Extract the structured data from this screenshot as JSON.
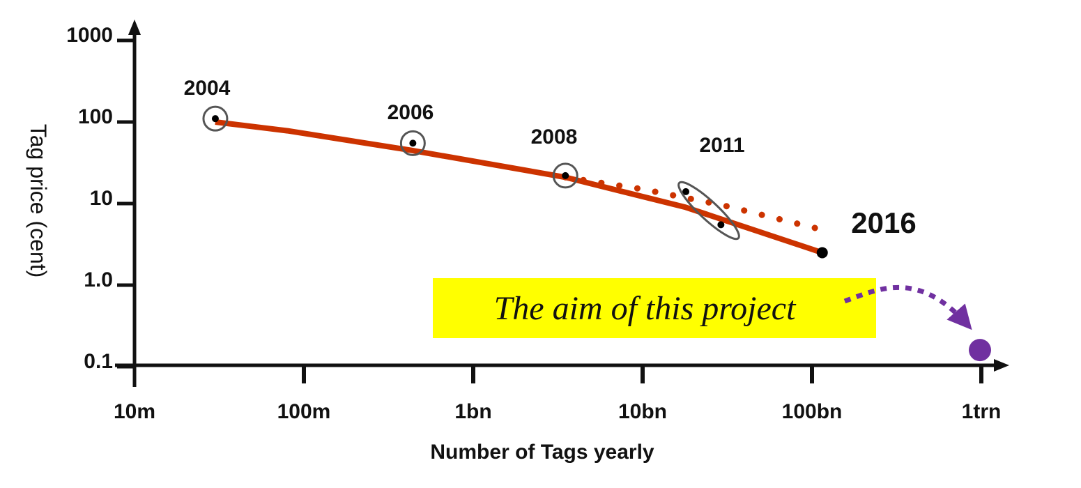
{
  "chart_data": {
    "type": "line",
    "title": "",
    "xlabel": "Number of Tags yearly",
    "ylabel": "Tag price (cent)",
    "x_scale": "log",
    "y_scale": "log",
    "xlim": [
      10000000,
      1000000000000
    ],
    "ylim": [
      0.1,
      1000
    ],
    "x_ticks": [
      {
        "value": 10000000,
        "label": "10m"
      },
      {
        "value": 100000000,
        "label": "100m"
      },
      {
        "value": 1000000000,
        "label": "1bn"
      },
      {
        "value": 10000000000,
        "label": "10bn"
      },
      {
        "value": 100000000000,
        "label": "100bn"
      },
      {
        "value": 1000000000000,
        "label": "1trn"
      }
    ],
    "y_ticks": [
      {
        "value": 1000,
        "label": "1000"
      },
      {
        "value": 100,
        "label": "100"
      },
      {
        "value": 10,
        "label": "10"
      },
      {
        "value": 1,
        "label": "1.0"
      },
      {
        "value": 0.1,
        "label": "0.1"
      }
    ],
    "grid": false,
    "legend": "none",
    "series": [
      {
        "style": "solid",
        "color": "#cc3300",
        "x": [
          30000000,
          80000000,
          430000000,
          3500000000,
          18000000000,
          115000000000
        ],
        "y": [
          100,
          78,
          45,
          21,
          9,
          2.5
        ]
      },
      {
        "style": "dotted",
        "color": "#cc3300",
        "x": [
          3500000000,
          10000000000,
          30000000000,
          105000000000
        ],
        "y": [
          21,
          15,
          9.5,
          5
        ]
      }
    ],
    "points": [
      {
        "label": "2004",
        "x": 30000000,
        "y": 110,
        "circled": true
      },
      {
        "label": "2006",
        "x": 440000000,
        "y": 55,
        "circled": true
      },
      {
        "label": "2008",
        "x": 3500000000,
        "y": 22,
        "circled": true
      },
      {
        "label": "2011",
        "x": 18000000000,
        "y": 14,
        "circled": false
      },
      {
        "label": "",
        "x": 29000000000,
        "y": 5.5,
        "circled": false
      },
      {
        "label": "2016",
        "x": 115000000000,
        "y": 2.5,
        "circled": false,
        "big": true
      }
    ],
    "target_point": {
      "x": 1000000000000,
      "y": 0.16,
      "color": "#7030a0"
    },
    "annotation": {
      "text": "The aim of this project",
      "background": "#ffff00"
    },
    "colors": {
      "axis": "#111111",
      "trend": "#cc3300",
      "circle": "#555555",
      "target": "#7030a0",
      "highlight": "#ffff00"
    }
  }
}
